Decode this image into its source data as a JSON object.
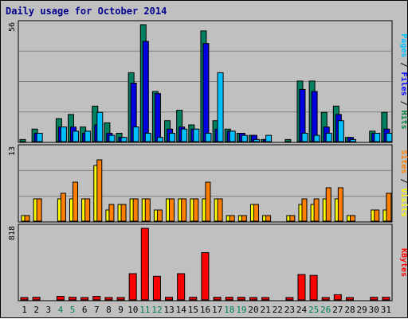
{
  "title": "Daily usage for October 2014",
  "chart_data": [
    {
      "type": "bar",
      "panel": "traffic",
      "legend": [
        {
          "text": "Pages",
          "color": "#00c0ff"
        },
        {
          "text": " / ",
          "color": "#000000"
        },
        {
          "text": "Files",
          "color": "#0000ff"
        },
        {
          "text": " / ",
          "color": "#000000"
        },
        {
          "text": "Hits",
          "color": "#008040"
        }
      ],
      "ymax": 56,
      "ymax_label": "56",
      "categories": [
        "1",
        "2",
        "3",
        "4",
        "5",
        "6",
        "7",
        "8",
        "9",
        "10",
        "11",
        "12",
        "13",
        "14",
        "15",
        "16",
        "17",
        "18",
        "19",
        "20",
        "21",
        "22",
        "23",
        "24",
        "25",
        "26",
        "27",
        "28",
        "29",
        "30",
        "31"
      ],
      "weekend_days": [
        "4",
        "5",
        "11",
        "12",
        "18",
        "19",
        "25",
        "26"
      ],
      "series": [
        {
          "name": "Hits",
          "color": "#008060",
          "values": [
            1,
            6,
            0,
            11,
            13,
            7,
            17,
            9,
            4,
            33,
            56,
            24,
            10,
            15,
            8,
            53,
            10,
            6,
            4,
            3,
            1,
            0,
            1,
            29,
            29,
            14,
            17,
            2,
            0,
            5,
            14
          ]
        },
        {
          "name": "Files",
          "color": "#0000e0",
          "values": [
            0,
            4,
            0,
            7,
            7,
            4,
            8,
            4,
            2,
            28,
            48,
            23,
            6,
            7,
            6,
            47,
            6,
            5,
            4,
            3,
            1,
            0,
            0,
            25,
            24,
            7,
            13,
            2,
            0,
            4,
            6
          ]
        },
        {
          "name": "Pages",
          "color": "#00c0ff",
          "values": [
            0,
            4,
            0,
            7,
            5,
            5,
            14,
            3,
            2,
            7,
            4,
            2,
            4,
            6,
            6,
            4,
            33,
            5,
            3,
            1,
            3,
            0,
            0,
            4,
            3,
            4,
            10,
            1,
            0,
            4,
            4
          ]
        }
      ]
    },
    {
      "type": "bar",
      "panel": "visitors",
      "legend": [
        {
          "text": "Sites",
          "color": "#ff8000"
        },
        {
          "text": " / ",
          "color": "#000000"
        },
        {
          "text": "Visits",
          "color": "#ffff00"
        }
      ],
      "ymax": 13,
      "ymax_label": "13",
      "series": [
        {
          "name": "Visits",
          "color": "#ffff00",
          "values": [
            1,
            4,
            0,
            4,
            4,
            4,
            10,
            2,
            3,
            4,
            4,
            2,
            4,
            4,
            4,
            4,
            4,
            1,
            1,
            3,
            1,
            0,
            1,
            3,
            3,
            4,
            4,
            1,
            0,
            2,
            2
          ]
        },
        {
          "name": "Sites",
          "color": "#ff8000",
          "values": [
            1,
            4,
            0,
            5,
            7,
            4,
            11,
            3,
            3,
            4,
            4,
            2,
            4,
            4,
            4,
            7,
            4,
            1,
            1,
            3,
            1,
            0,
            1,
            4,
            4,
            6,
            6,
            1,
            0,
            2,
            5
          ]
        }
      ]
    },
    {
      "type": "bar",
      "panel": "kbytes",
      "legend": [
        {
          "text": "KBytes",
          "color": "#ff0000"
        }
      ],
      "ymax": 818,
      "ymax_label": "818",
      "series": [
        {
          "name": "KBytes",
          "color": "#ff0000",
          "values": [
            10,
            30,
            0,
            40,
            30,
            20,
            40,
            20,
            20,
            300,
            818,
            270,
            30,
            300,
            30,
            540,
            30,
            30,
            30,
            10,
            20,
            0,
            10,
            290,
            280,
            20,
            60,
            10,
            0,
            30,
            30
          ]
        }
      ]
    }
  ]
}
